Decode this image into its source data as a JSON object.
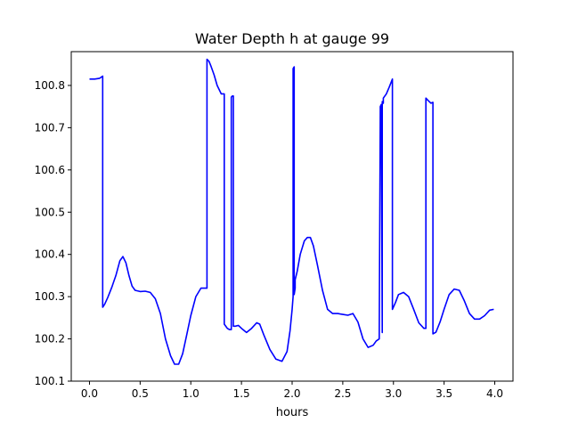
{
  "chart_data": {
    "type": "line",
    "title": "Water Depth h at gauge 99",
    "xlabel": "hours",
    "ylabel": "",
    "xlim": [
      -0.18,
      4.18
    ],
    "ylim": [
      100.1,
      100.88
    ],
    "grid": false,
    "xticks": [
      0.0,
      0.5,
      1.0,
      1.5,
      2.0,
      2.5,
      3.0,
      3.5,
      4.0
    ],
    "xtick_labels": [
      "0.0",
      "0.5",
      "1.0",
      "1.5",
      "2.0",
      "2.5",
      "3.0",
      "3.5",
      "4.0"
    ],
    "yticks": [
      100.1,
      100.2,
      100.3,
      100.4,
      100.5,
      100.6,
      100.7,
      100.8
    ],
    "ytick_labels": [
      "100.1",
      "100.2",
      "100.3",
      "100.4",
      "100.5",
      "100.6",
      "100.7",
      "100.8"
    ],
    "series": [
      {
        "color": "#0000ff",
        "x": [
          0.0,
          0.05,
          0.1,
          0.13,
          0.13,
          0.15,
          0.18,
          0.22,
          0.26,
          0.3,
          0.33,
          0.36,
          0.39,
          0.42,
          0.45,
          0.5,
          0.55,
          0.6,
          0.65,
          0.7,
          0.75,
          0.8,
          0.84,
          0.88,
          0.92,
          0.96,
          1.0,
          1.05,
          1.1,
          1.14,
          1.16,
          1.16,
          1.18,
          1.2,
          1.23,
          1.26,
          1.3,
          1.33,
          1.33,
          1.36,
          1.38,
          1.4,
          1.4,
          1.41,
          1.42,
          1.42,
          1.44,
          1.47,
          1.5,
          1.55,
          1.6,
          1.65,
          1.68,
          1.72,
          1.78,
          1.84,
          1.9,
          1.95,
          1.98,
          2.0,
          2.01,
          2.01,
          2.02,
          2.02,
          2.03,
          2.03,
          2.05,
          2.08,
          2.12,
          2.15,
          2.18,
          2.21,
          2.25,
          2.3,
          2.35,
          2.4,
          2.45,
          2.5,
          2.55,
          2.6,
          2.65,
          2.7,
          2.75,
          2.8,
          2.83,
          2.86,
          2.87,
          2.87,
          2.88,
          2.89,
          2.89,
          2.9,
          2.9,
          2.93,
          2.96,
          2.99,
          2.99,
          3.02,
          3.05,
          3.1,
          3.15,
          3.2,
          3.25,
          3.3,
          3.32,
          3.32,
          3.34,
          3.37,
          3.39,
          3.39,
          3.42,
          3.46,
          3.5,
          3.55,
          3.6,
          3.65,
          3.7,
          3.75,
          3.8,
          3.85,
          3.9,
          3.95,
          3.99
        ],
        "y": [
          100.815,
          100.815,
          100.817,
          100.822,
          100.275,
          100.282,
          100.298,
          100.322,
          100.35,
          100.385,
          100.395,
          100.38,
          100.35,
          100.325,
          100.315,
          100.312,
          100.313,
          100.31,
          100.295,
          100.26,
          100.2,
          100.16,
          100.14,
          100.14,
          100.165,
          100.21,
          100.255,
          100.3,
          100.32,
          100.32,
          100.32,
          100.862,
          100.857,
          100.845,
          100.825,
          100.8,
          100.78,
          100.78,
          100.235,
          100.225,
          100.222,
          100.222,
          100.772,
          100.775,
          100.775,
          100.23,
          100.23,
          100.232,
          100.225,
          100.215,
          100.225,
          100.238,
          100.235,
          100.21,
          100.175,
          100.152,
          100.147,
          100.17,
          100.22,
          100.27,
          100.3,
          100.84,
          100.844,
          100.305,
          100.32,
          100.34,
          100.36,
          100.4,
          100.432,
          100.44,
          100.44,
          100.42,
          100.375,
          100.315,
          100.27,
          100.26,
          100.26,
          100.258,
          100.256,
          100.26,
          100.24,
          100.2,
          100.18,
          100.185,
          100.195,
          100.2,
          100.745,
          100.75,
          100.755,
          100.215,
          100.762,
          100.758,
          100.77,
          100.78,
          100.797,
          100.815,
          100.27,
          100.286,
          100.305,
          100.31,
          100.3,
          100.27,
          100.238,
          100.225,
          100.225,
          100.77,
          100.765,
          100.758,
          100.76,
          100.212,
          100.216,
          100.24,
          100.27,
          100.305,
          100.318,
          100.315,
          100.29,
          100.26,
          100.247,
          100.247,
          100.255,
          100.268,
          100.27
        ]
      }
    ]
  }
}
